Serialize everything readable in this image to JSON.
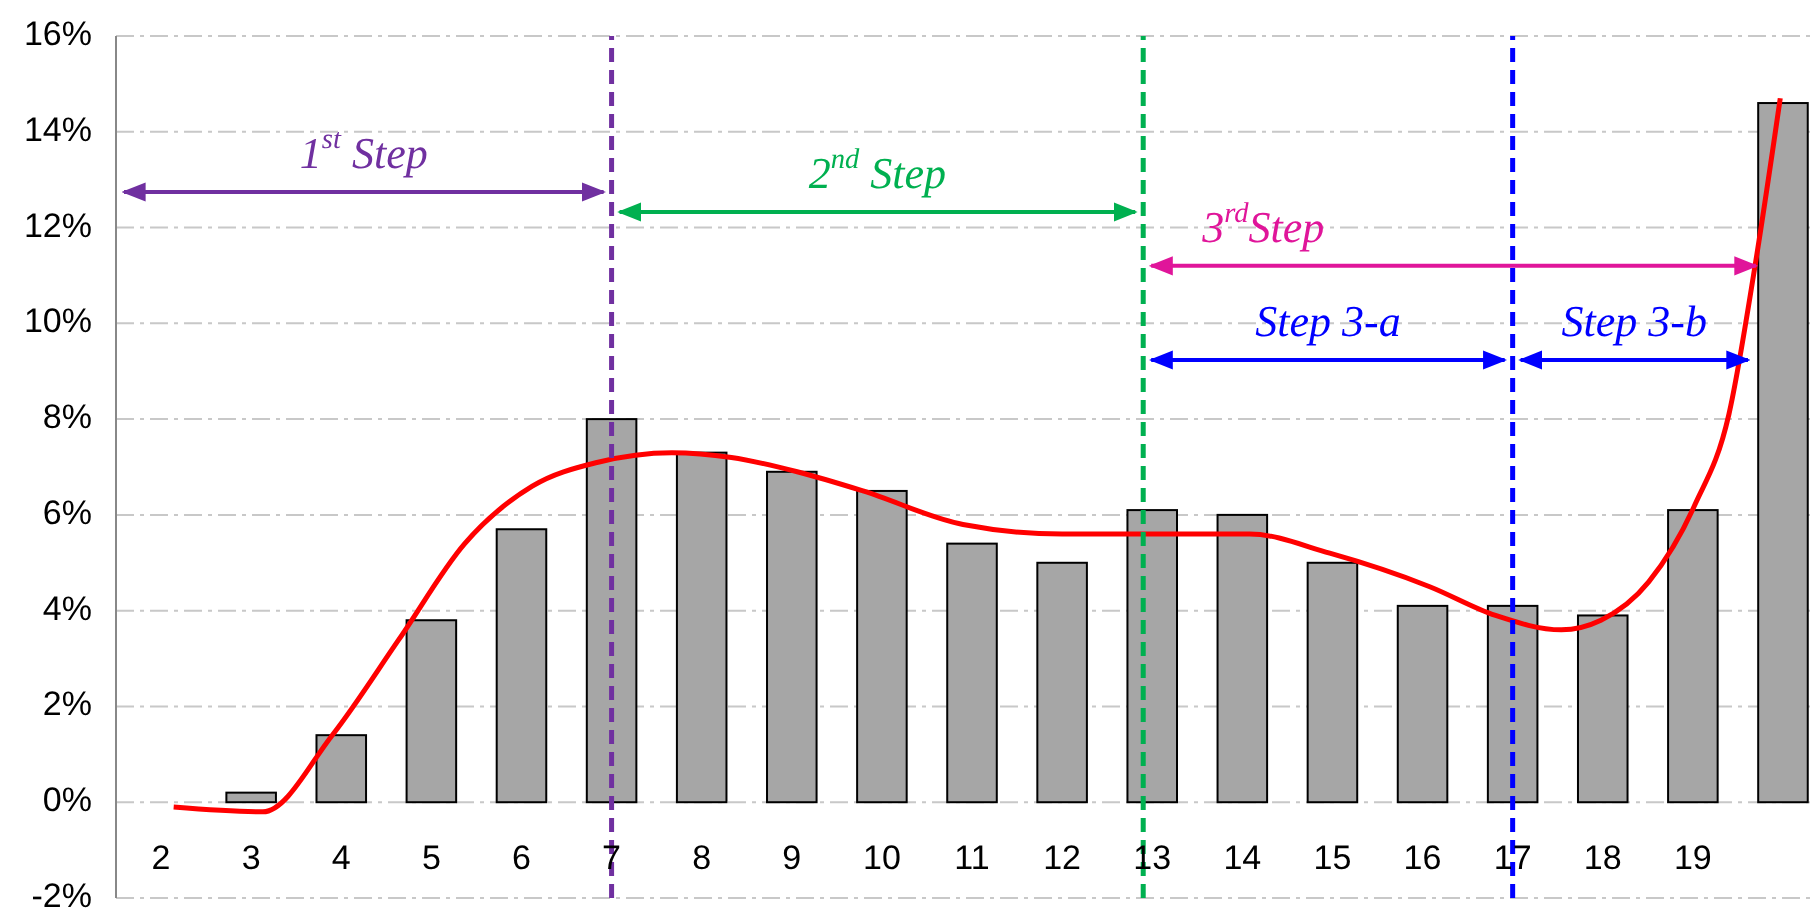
{
  "chart_data": {
    "type": "bar",
    "xlim": [
      1.5,
      20.3
    ],
    "xticks": [
      2,
      3,
      4,
      5,
      6,
      7,
      8,
      9,
      10,
      11,
      12,
      13,
      14,
      15,
      16,
      17,
      18,
      19
    ],
    "ylim": [
      -2,
      16
    ],
    "yticks": [
      {
        "value": -2,
        "label": "-2%"
      },
      {
        "value": 0,
        "label": "0%"
      },
      {
        "value": 2,
        "label": "2%"
      },
      {
        "value": 4,
        "label": "4%"
      },
      {
        "value": 6,
        "label": "6%"
      },
      {
        "value": 8,
        "label": "8%"
      },
      {
        "value": 10,
        "label": "10%"
      },
      {
        "value": 12,
        "label": "12%"
      },
      {
        "value": 14,
        "label": "14%"
      },
      {
        "value": 16,
        "label": "16%"
      }
    ],
    "grid": "y",
    "series": [
      {
        "color": "#a6a6a6",
        "x": [
          3,
          4,
          5,
          6,
          7,
          8,
          9,
          10,
          11,
          12,
          13,
          14,
          15,
          16,
          17,
          18,
          19,
          20
        ],
        "values": [
          0.2,
          1.4,
          3.8,
          5.7,
          8.0,
          7.3,
          6.9,
          6.5,
          5.4,
          5.0,
          6.1,
          6.0,
          5.0,
          4.1,
          4.1,
          3.9,
          6.1,
          14.6
        ]
      },
      {
        "type": "line",
        "color": "#ff0000",
        "line_style": "solid",
        "x": [
          2.14,
          3.13,
          3.9,
          4.64,
          5.37,
          6.12,
          6.85,
          7.67,
          8.33,
          9.06,
          9.79,
          10.9,
          12.0,
          13.11,
          14.08,
          14.97,
          16.08,
          16.81,
          17.54,
          17.98,
          18.51,
          19.02,
          19.4,
          19.69,
          19.97
        ],
        "values": [
          -0.1,
          -0.2,
          1.4,
          3.4,
          5.4,
          6.6,
          7.1,
          7.3,
          7.2,
          6.9,
          6.5,
          5.8,
          5.6,
          5.6,
          5.6,
          5.2,
          4.5,
          3.9,
          3.6,
          3.8,
          4.6,
          6.2,
          8.1,
          11.2,
          14.7
        ]
      }
    ],
    "ref_lines": [
      {
        "axis": "x",
        "value": 7,
        "color": "#7030a0",
        "line_style": "dashed"
      },
      {
        "axis": "x",
        "value": 12.9,
        "color": "#00b050",
        "line_style": "dashed"
      },
      {
        "axis": "x",
        "value": 17,
        "color": "#0000ff",
        "line_style": "dashed"
      }
    ],
    "annotations": [
      "1$^{st}$ Step",
      "2$^{nd}$ Step",
      {
        "text": "3$^{rd}$Step",
        "x": 19.7,
        "y": 11.2
      },
      "Step 3-a",
      "Step 3-b"
    ]
  }
}
